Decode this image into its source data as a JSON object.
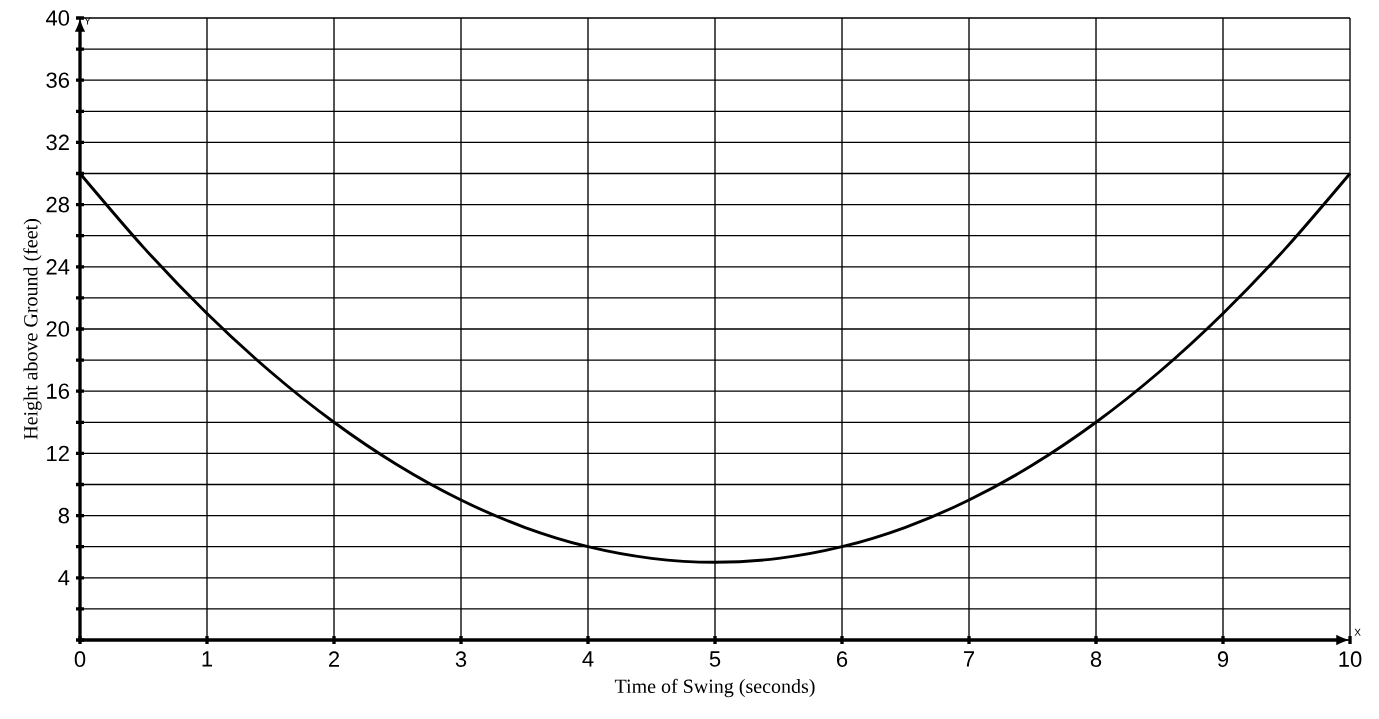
{
  "chart_data": {
    "type": "line",
    "xlabel": "Time of Swing (seconds)",
    "ylabel": "Height above Ground (feet)",
    "annotations": [
      "Y",
      "X"
    ],
    "x": [
      0,
      0.5,
      1,
      1.5,
      2,
      2.5,
      3,
      3.5,
      4,
      4.5,
      5,
      5.5,
      6,
      6.5,
      7,
      7.5,
      8,
      8.5,
      9,
      9.5,
      10
    ],
    "values": [
      30,
      25.25,
      21,
      17.25,
      14,
      11.25,
      9,
      7.25,
      6,
      5.25,
      5,
      5.25,
      6,
      7.25,
      9,
      11.25,
      14,
      17.25,
      21,
      25.25,
      30
    ],
    "color": "#000000",
    "xlim": [
      0,
      10
    ],
    "ylim": [
      0,
      40
    ],
    "xticks": [
      0,
      1,
      2,
      3,
      4,
      5,
      6,
      7,
      8,
      9,
      10
    ],
    "yticks": [
      {
        "value": 0,
        "label": null
      },
      {
        "value": 2,
        "label": null
      },
      4,
      {
        "value": 6,
        "label": null
      },
      8,
      {
        "value": 10,
        "label": null
      },
      12,
      {
        "value": 14,
        "label": null
      },
      16,
      {
        "value": 18,
        "label": null
      },
      20,
      {
        "value": 22,
        "label": null
      },
      24,
      {
        "value": 26,
        "label": null
      },
      28,
      {
        "value": 30,
        "label": null
      },
      32,
      {
        "value": 34,
        "label": null
      },
      36,
      {
        "value": 38,
        "label": null
      },
      40
    ],
    "grid": true,
    "marker": "none",
    "line_style": "solid"
  }
}
